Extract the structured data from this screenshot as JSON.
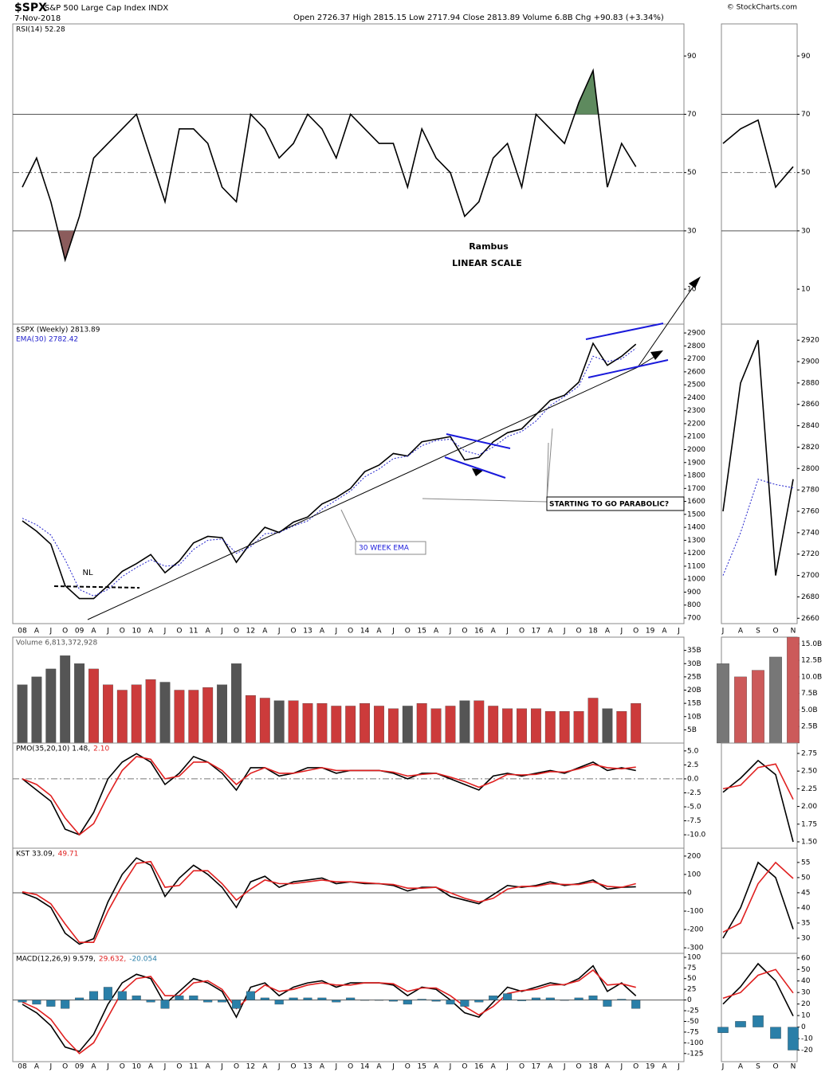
{
  "header": {
    "symbol": "$SPX",
    "name": "S&P 500 Large Cap Index INDX",
    "date": "7-Nov-2018",
    "quote": "Open 2726.37  High 2815.15  Low 2717.94  Close 2813.89  Volume 6.8B  Chg +90.83 (+3.34%)",
    "source": "© StockCharts.com"
  },
  "annotations": {
    "author": "Rambus",
    "scale": "LINEAR SCALE",
    "neckline": "NL",
    "ema_note": "30 WEEK EMA",
    "parabolic_note": "STARTING TO GO PARABOLIC?"
  },
  "x_axes": {
    "main": [
      "08",
      "A",
      "J",
      "O",
      "09",
      "A",
      "J",
      "O",
      "10",
      "A",
      "J",
      "O",
      "11",
      "A",
      "J",
      "O",
      "12",
      "A",
      "J",
      "O",
      "13",
      "A",
      "J",
      "O",
      "14",
      "A",
      "J",
      "O",
      "15",
      "A",
      "J",
      "O",
      "16",
      "A",
      "J",
      "O",
      "17",
      "A",
      "J",
      "O",
      "18",
      "A",
      "J",
      "O",
      "19",
      "A",
      "J"
    ],
    "side": [
      "J",
      "A",
      "S",
      "O",
      "N"
    ]
  },
  "chart_data": [
    {
      "type": "line",
      "x_axis": "main",
      "ylim": [
        -2,
        101
      ],
      "yticks": [
        90,
        70,
        50,
        30,
        10
      ],
      "levels": [
        {
          "value": 70,
          "style": "solid"
        },
        {
          "value": 30,
          "style": "solid"
        },
        {
          "value": 50,
          "style": "dashdot"
        }
      ],
      "overbought_color": "#5e8a5e",
      "oversold_color": "#8b5c5c",
      "series": [
        {
          "name": "RSI(14) 52.28",
          "color": "#000000",
          "values": [
            45,
            55,
            40,
            20,
            35,
            55,
            60,
            65,
            70,
            55,
            40,
            65,
            65,
            60,
            45,
            40,
            70,
            65,
            55,
            60,
            70,
            65,
            55,
            70,
            65,
            60,
            60,
            45,
            65,
            55,
            50,
            35,
            40,
            55,
            60,
            45,
            70,
            65,
            60,
            74,
            85,
            45,
            60,
            52,
            null,
            null,
            null
          ]
        }
      ]
    },
    {
      "type": "line",
      "x_axis": "main",
      "ylim": [
        657,
        2968
      ],
      "yticks": [
        700,
        800,
        900,
        1000,
        1100,
        1200,
        1300,
        1400,
        1500,
        1600,
        1700,
        1800,
        1900,
        2000,
        2100,
        2200,
        2300,
        2400,
        2500,
        2600,
        2700,
        2800,
        2900
      ],
      "series": [
        {
          "name": "$SPX (Weekly) 2813.89",
          "color": "#000000",
          "values": [
            1450,
            1370,
            1270,
            950,
            850,
            850,
            950,
            1060,
            1120,
            1190,
            1050,
            1140,
            1280,
            1330,
            1320,
            1130,
            1280,
            1400,
            1360,
            1440,
            1480,
            1580,
            1630,
            1700,
            1830,
            1880,
            1970,
            1950,
            2060,
            2080,
            2100,
            1920,
            1940,
            2060,
            2130,
            2160,
            2270,
            2380,
            2420,
            2520,
            2820,
            2650,
            2720,
            2814,
            null,
            null,
            null
          ]
        },
        {
          "name": "EMA(30) 2782.42",
          "color": "#2222cc",
          "dashed": true,
          "values": [
            1470,
            1420,
            1340,
            1150,
            920,
            870,
            920,
            1020,
            1090,
            1150,
            1100,
            1110,
            1230,
            1300,
            1310,
            1200,
            1250,
            1350,
            1360,
            1410,
            1450,
            1540,
            1610,
            1680,
            1790,
            1850,
            1930,
            1950,
            2030,
            2070,
            2080,
            1990,
            1960,
            2020,
            2100,
            2140,
            2220,
            2340,
            2410,
            2490,
            2720,
            2680,
            2700,
            2782,
            null,
            null,
            null
          ]
        }
      ]
    },
    {
      "type": "bar",
      "x_axis": "main",
      "ylim": [
        0,
        40
      ],
      "yticks": [
        {
          "value": 35,
          "label": "35B"
        },
        {
          "value": 30,
          "label": "30B"
        },
        {
          "value": 25,
          "label": "25B"
        },
        {
          "value": 20,
          "label": "20B"
        },
        {
          "value": 15,
          "label": "15B"
        },
        {
          "value": 10,
          "label": "10B"
        },
        {
          "value": 5,
          "label": "5B"
        }
      ],
      "up_color": "#cc3b3b",
      "down_color": "#555555",
      "series": [
        {
          "name": "Volume 6,813,372,928",
          "color": "#555555",
          "values": [
            22,
            25,
            28,
            33,
            30,
            28,
            22,
            20,
            22,
            24,
            23,
            20,
            20,
            21,
            22,
            30,
            18,
            17,
            16,
            16,
            15,
            15,
            14,
            14,
            15,
            14,
            13,
            14,
            15,
            13,
            14,
            16,
            16,
            14,
            13,
            13,
            13,
            12,
            12,
            12,
            17,
            13,
            12,
            15,
            null,
            null,
            null
          ]
        }
      ]
    },
    {
      "type": "line",
      "x_axis": "main",
      "ylim": [
        -12.4,
        6.4
      ],
      "yticks": [
        {
          "value": 5,
          "label": "5.0"
        },
        {
          "value": 2.5,
          "label": "2.5"
        },
        {
          "value": 0,
          "label": "0.0"
        },
        {
          "value": -2.5,
          "label": "-2.5"
        },
        {
          "value": -5,
          "label": "-5.0"
        },
        {
          "value": -7.5,
          "label": "-7.5"
        },
        {
          "value": -10,
          "label": "-10.0"
        }
      ],
      "levels": [
        {
          "value": 0,
          "style": "dashdot"
        }
      ],
      "series": [
        {
          "name": "PMO(35,20,10) 1.48,",
          "color": "#000000",
          "values": [
            0,
            -2,
            -4,
            -9,
            -10,
            -6,
            0,
            3,
            4.5,
            3,
            -1,
            1,
            4,
            3,
            1,
            -2,
            2,
            2,
            0.5,
            1,
            2,
            2,
            1,
            1.5,
            1.5,
            1.5,
            1,
            0,
            1,
            1,
            0,
            -1,
            -2,
            0.5,
            1,
            0.5,
            1,
            1.5,
            1,
            2,
            3,
            1.5,
            2,
            1.48,
            null,
            null,
            null
          ]
        },
        {
          "name": "2.10",
          "color": "#e02020",
          "values": [
            0,
            -1,
            -3,
            -7,
            -10,
            -8,
            -3,
            1.5,
            4,
            3.5,
            0,
            0.5,
            3,
            3,
            1.5,
            -1,
            1,
            2,
            1,
            1,
            1.5,
            2,
            1.5,
            1.5,
            1.5,
            1.5,
            1.2,
            0.5,
            0.8,
            1,
            0.3,
            -0.5,
            -1.5,
            -0.5,
            0.8,
            0.7,
            0.8,
            1.3,
            1.2,
            1.8,
            2.6,
            2,
            1.8,
            2.1,
            null,
            null,
            null
          ]
        }
      ]
    },
    {
      "type": "line",
      "x_axis": "main",
      "ylim": [
        -330,
        243
      ],
      "yticks": [
        200,
        100,
        0,
        -100,
        -200,
        -300
      ],
      "levels": [
        {
          "value": 0,
          "style": "solid"
        }
      ],
      "series": [
        {
          "name": "KST 33.09,",
          "color": "#000000",
          "values": [
            0,
            -30,
            -80,
            -220,
            -280,
            -250,
            -50,
            100,
            190,
            150,
            -20,
            80,
            150,
            100,
            30,
            -80,
            60,
            90,
            30,
            60,
            70,
            80,
            50,
            60,
            50,
            50,
            40,
            10,
            30,
            30,
            -20,
            -40,
            -60,
            -10,
            40,
            30,
            40,
            60,
            40,
            50,
            70,
            20,
            30,
            33,
            null,
            null,
            null
          ]
        },
        {
          "name": "49.71",
          "color": "#e02020",
          "values": [
            5,
            -10,
            -60,
            -170,
            -270,
            -270,
            -100,
            40,
            160,
            170,
            30,
            40,
            120,
            120,
            50,
            -40,
            20,
            70,
            50,
            50,
            60,
            70,
            60,
            60,
            55,
            50,
            45,
            25,
            25,
            30,
            0,
            -30,
            -50,
            -30,
            20,
            35,
            35,
            50,
            45,
            45,
            60,
            35,
            30,
            50,
            null,
            null,
            null
          ]
        }
      ]
    },
    {
      "type": "line",
      "x_axis": "main",
      "ylim": [
        -144,
        109
      ],
      "yticks": [
        100,
        75,
        50,
        25,
        0,
        -25,
        -50,
        -75,
        -100,
        -125
      ],
      "levels": [
        {
          "value": 0,
          "style": "solid"
        }
      ],
      "series": [
        {
          "name": "MACD(12,26,9) 9.579,",
          "color": "#000000",
          "values": [
            -10,
            -30,
            -60,
            -110,
            -120,
            -80,
            -10,
            40,
            60,
            50,
            -10,
            20,
            50,
            40,
            20,
            -40,
            30,
            40,
            10,
            30,
            40,
            45,
            30,
            40,
            40,
            40,
            35,
            10,
            30,
            25,
            0,
            -30,
            -40,
            -5,
            30,
            20,
            30,
            40,
            35,
            50,
            80,
            20,
            40,
            9.6,
            null,
            null,
            null
          ]
        },
        {
          "name": "29.632,",
          "color": "#e02020",
          "values": [
            -5,
            -20,
            -45,
            -90,
            -125,
            -100,
            -40,
            20,
            50,
            55,
            10,
            10,
            40,
            45,
            25,
            -20,
            10,
            35,
            20,
            25,
            35,
            40,
            35,
            35,
            40,
            40,
            38,
            20,
            28,
            28,
            10,
            -15,
            -35,
            -15,
            15,
            22,
            25,
            35,
            36,
            45,
            70,
            35,
            38,
            29.6,
            null,
            null,
            null
          ]
        },
        {
          "name": "-20.054",
          "color": "#2a7fa8",
          "kind": "bar",
          "values": [
            -5,
            -10,
            -15,
            -20,
            5,
            20,
            30,
            20,
            10,
            -5,
            -20,
            10,
            10,
            -5,
            -5,
            -20,
            20,
            5,
            -10,
            5,
            5,
            5,
            -5,
            5,
            0,
            0,
            -3,
            -10,
            2,
            -3,
            -10,
            -15,
            -5,
            10,
            15,
            -2,
            5,
            5,
            -1,
            5,
            10,
            -15,
            2,
            -20,
            null,
            null,
            null
          ]
        }
      ]
    },
    {
      "type": "line",
      "x_axis": "side",
      "ylim": [
        -2,
        101
      ],
      "yticks": [
        90,
        70,
        50,
        30,
        10
      ],
      "levels": [
        {
          "value": 70,
          "style": "solid"
        },
        {
          "value": 30,
          "style": "solid"
        },
        {
          "value": 50,
          "style": "dashdot"
        }
      ],
      "series": [
        {
          "color": "#000000",
          "values": [
            60,
            65,
            68,
            45,
            52
          ]
        }
      ]
    },
    {
      "type": "line",
      "x_axis": "side",
      "ylim": [
        2655,
        2935
      ],
      "yticks": [
        2920,
        2900,
        2880,
        2860,
        2840,
        2820,
        2800,
        2780,
        2760,
        2740,
        2720,
        2700,
        2680,
        2660
      ],
      "series": [
        {
          "color": "#000000",
          "values": [
            2760,
            2880,
            2920,
            2700,
            2790
          ]
        },
        {
          "color": "#2222cc",
          "dashed": true,
          "values": [
            2700,
            2740,
            2790,
            2785,
            2782
          ]
        }
      ]
    },
    {
      "type": "bar",
      "x_axis": "side",
      "ylim": [
        0,
        16
      ],
      "yticks": [
        {
          "value": 15,
          "label": "15.0B"
        },
        {
          "value": 12.5,
          "label": "12.5B"
        },
        {
          "value": 10,
          "label": "10.0B"
        },
        {
          "value": 7.5,
          "label": "7.5B"
        },
        {
          "value": 5,
          "label": "5.0B"
        },
        {
          "value": 2.5,
          "label": "2.5B"
        }
      ],
      "up_color": "#cc5a5a",
      "down_color": "#777777",
      "series": [
        {
          "color": "#777777",
          "values": [
            12,
            10,
            11,
            13,
            16
          ]
        }
      ]
    },
    {
      "type": "line",
      "x_axis": "side",
      "ylim": [
        1.41,
        2.896
      ],
      "yticks": [
        2.75,
        {
          "value": 2.5,
          "label": "2.50"
        },
        2.25,
        {
          "value": 2,
          "label": "2.00"
        },
        1.75,
        {
          "value": 1.5,
          "label": "1.50"
        }
      ],
      "series": [
        {
          "color": "#000000",
          "values": [
            2.2,
            2.4,
            2.65,
            2.45,
            1.5
          ]
        },
        {
          "color": "#e02020",
          "values": [
            2.25,
            2.3,
            2.55,
            2.6,
            2.1
          ]
        }
      ]
    },
    {
      "type": "line",
      "x_axis": "side",
      "ylim": [
        25,
        59.7
      ],
      "yticks": [
        55,
        50,
        45,
        40,
        35,
        30
      ],
      "series": [
        {
          "color": "#000000",
          "values": [
            30,
            40,
            55,
            50,
            33
          ]
        },
        {
          "color": "#e02020",
          "values": [
            32,
            35,
            48,
            55,
            49.7
          ]
        }
      ]
    },
    {
      "type": "line",
      "x_axis": "side",
      "ylim": [
        -30,
        64
      ],
      "yticks": [
        60,
        50,
        40,
        30,
        20,
        10,
        0,
        -10,
        -20
      ],
      "series": [
        {
          "color": "#000000",
          "values": [
            20,
            35,
            55,
            40,
            9.6
          ]
        },
        {
          "color": "#e02020",
          "values": [
            25,
            30,
            45,
            50,
            29.6
          ]
        },
        {
          "color": "#2a7fa8",
          "kind": "bar",
          "values": [
            -5,
            5,
            10,
            -10,
            -20
          ]
        }
      ]
    }
  ]
}
